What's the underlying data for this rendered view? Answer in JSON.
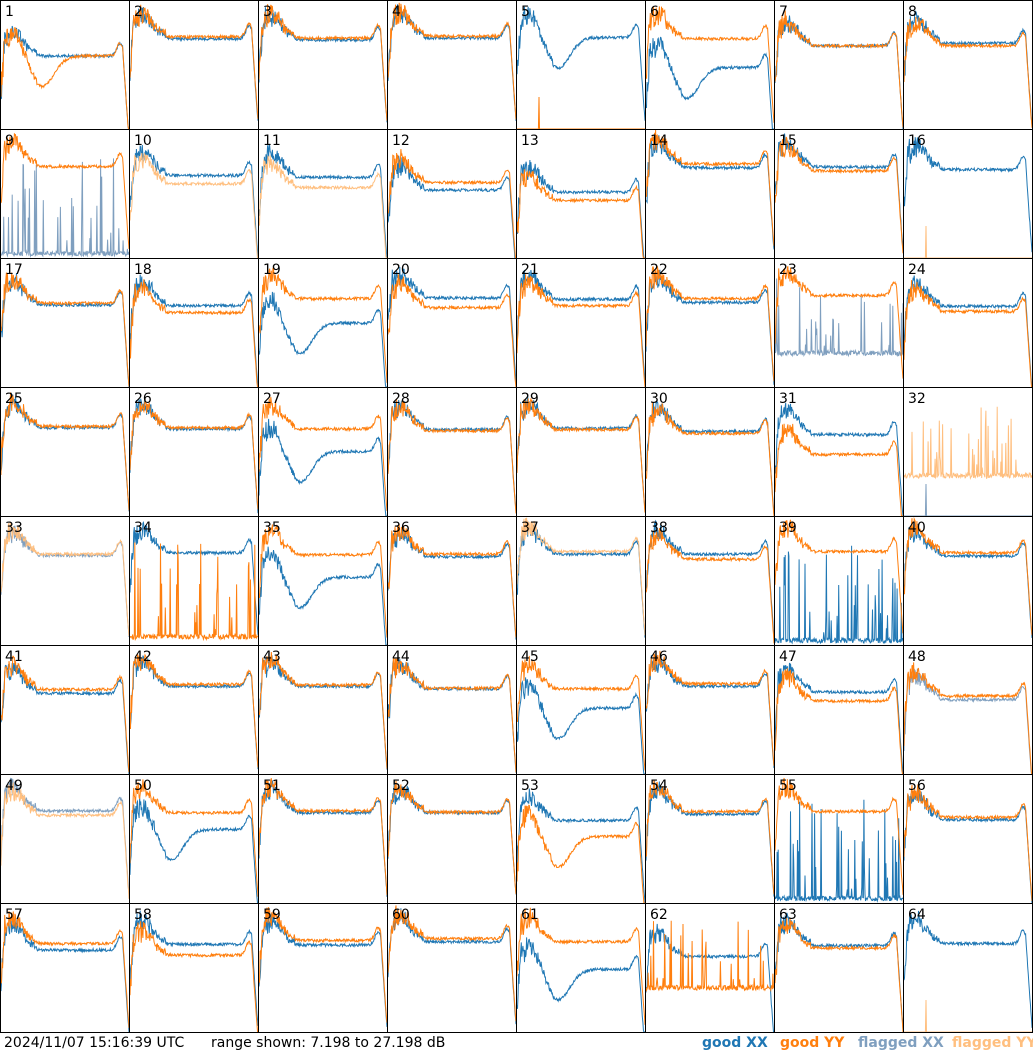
{
  "footer": {
    "timestamp": "2024/11/07 15:16:39 UTC",
    "range_text": "range shown: 7.198 to 27.198 dB"
  },
  "legend": [
    {
      "key": "good_xx",
      "label": "good XX",
      "color": "#1f77b4"
    },
    {
      "key": "good_yy",
      "label": "good YY",
      "color": "#ff7f0e"
    },
    {
      "key": "flagged_xx",
      "label": "flagged XX",
      "color": "#7f9fbf"
    },
    {
      "key": "flagged_yy",
      "label": "flagged YY",
      "color": "#ffbf7f"
    }
  ],
  "chart_data": {
    "type": "line",
    "title": "",
    "xlabel": "",
    "ylabel": "",
    "ylim": [
      7.198,
      27.198
    ],
    "grid_rows": 8,
    "grid_cols": 8,
    "series_names": [
      "good XX",
      "good YY",
      "flagged XX",
      "flagged YY"
    ],
    "panels": [
      {
        "n": 1,
        "xx": {
          "lvl": 18.6,
          "st": "normal",
          "f": false
        },
        "yy": {
          "lvl": 18.6,
          "st": "dip",
          "f": false
        }
      },
      {
        "n": 2,
        "xx": {
          "lvl": 21.3,
          "st": "normal",
          "f": false
        },
        "yy": {
          "lvl": 21.6,
          "st": "normal",
          "f": false
        }
      },
      {
        "n": 3,
        "xx": {
          "lvl": 21.1,
          "st": "normal",
          "f": false
        },
        "yy": {
          "lvl": 21.4,
          "st": "normal",
          "f": false
        }
      },
      {
        "n": 4,
        "xx": {
          "lvl": 21.4,
          "st": "normal",
          "f": false
        },
        "yy": {
          "lvl": 21.7,
          "st": "normal",
          "f": false
        }
      },
      {
        "n": 5,
        "xx": {
          "lvl": 21.5,
          "st": "dip",
          "f": false
        },
        "yy": {
          "lvl": 7.2,
          "st": "dead",
          "f": false
        }
      },
      {
        "n": 6,
        "xx": {
          "lvl": 16.8,
          "st": "dip",
          "f": false
        },
        "yy": {
          "lvl": 21.3,
          "st": "normal",
          "f": false
        }
      },
      {
        "n": 7,
        "xx": {
          "lvl": 20.2,
          "st": "normal",
          "f": false
        },
        "yy": {
          "lvl": 20.2,
          "st": "normal",
          "f": false
        }
      },
      {
        "n": 8,
        "xx": {
          "lvl": 20.6,
          "st": "normal",
          "f": false
        },
        "yy": {
          "lvl": 20.2,
          "st": "normal",
          "f": false
        }
      },
      {
        "n": 9,
        "xx": {
          "lvl": 7.9,
          "st": "spiky",
          "f": true
        },
        "yy": {
          "lvl": 21.5,
          "st": "normal",
          "f": false
        }
      },
      {
        "n": 10,
        "xx": {
          "lvl": 20.1,
          "st": "normal",
          "f": false
        },
        "yy": {
          "lvl": 18.8,
          "st": "normal",
          "f": true
        }
      },
      {
        "n": 11,
        "xx": {
          "lvl": 19.8,
          "st": "normal",
          "f": false
        },
        "yy": {
          "lvl": 18.2,
          "st": "normal",
          "f": true
        }
      },
      {
        "n": 12,
        "xx": {
          "lvl": 17.8,
          "st": "normal",
          "f": false
        },
        "yy": {
          "lvl": 19.0,
          "st": "normal",
          "f": false
        }
      },
      {
        "n": 13,
        "xx": {
          "lvl": 17.5,
          "st": "normal",
          "f": false
        },
        "yy": {
          "lvl": 16.2,
          "st": "normal",
          "f": false
        }
      },
      {
        "n": 14,
        "xx": {
          "lvl": 21.3,
          "st": "normal",
          "f": false
        },
        "yy": {
          "lvl": 21.9,
          "st": "normal",
          "f": false
        }
      },
      {
        "n": 15,
        "xx": {
          "lvl": 21.4,
          "st": "normal",
          "f": false
        },
        "yy": {
          "lvl": 20.8,
          "st": "normal",
          "f": false
        }
      },
      {
        "n": 16,
        "xx": {
          "lvl": 21.0,
          "st": "normal",
          "f": false
        },
        "yy": {
          "lvl": 7.2,
          "st": "dead",
          "f": true
        }
      },
      {
        "n": 17,
        "xx": {
          "lvl": 20.0,
          "st": "normal",
          "f": false
        },
        "yy": {
          "lvl": 20.3,
          "st": "normal",
          "f": false
        }
      },
      {
        "n": 18,
        "xx": {
          "lvl": 19.9,
          "st": "normal",
          "f": false
        },
        "yy": {
          "lvl": 18.8,
          "st": "normal",
          "f": false
        }
      },
      {
        "n": 19,
        "xx": {
          "lvl": 17.2,
          "st": "dip",
          "f": false
        },
        "yy": {
          "lvl": 21.0,
          "st": "normal",
          "f": false
        }
      },
      {
        "n": 20,
        "xx": {
          "lvl": 21.1,
          "st": "normal",
          "f": false
        },
        "yy": {
          "lvl": 19.6,
          "st": "normal",
          "f": false
        }
      },
      {
        "n": 21,
        "xx": {
          "lvl": 20.9,
          "st": "normal",
          "f": false
        },
        "yy": {
          "lvl": 19.9,
          "st": "normal",
          "f": false
        }
      },
      {
        "n": 22,
        "xx": {
          "lvl": 20.4,
          "st": "normal",
          "f": false
        },
        "yy": {
          "lvl": 21.0,
          "st": "normal",
          "f": false
        }
      },
      {
        "n": 23,
        "xx": {
          "lvl": 12.5,
          "st": "spiky",
          "f": true
        },
        "yy": {
          "lvl": 21.5,
          "st": "normal",
          "f": false
        }
      },
      {
        "n": 24,
        "xx": {
          "lvl": 19.8,
          "st": "normal",
          "f": false
        },
        "yy": {
          "lvl": 19.0,
          "st": "normal",
          "f": false
        }
      },
      {
        "n": 25,
        "xx": {
          "lvl": 21.0,
          "st": "normal",
          "f": false
        },
        "yy": {
          "lvl": 21.2,
          "st": "normal",
          "f": false
        }
      },
      {
        "n": 26,
        "xx": {
          "lvl": 20.8,
          "st": "normal",
          "f": false
        },
        "yy": {
          "lvl": 21.0,
          "st": "normal",
          "f": false
        }
      },
      {
        "n": 27,
        "xx": {
          "lvl": 17.3,
          "st": "dip",
          "f": false
        },
        "yy": {
          "lvl": 20.8,
          "st": "normal",
          "f": false
        }
      },
      {
        "n": 28,
        "xx": {
          "lvl": 20.7,
          "st": "normal",
          "f": false
        },
        "yy": {
          "lvl": 20.5,
          "st": "normal",
          "f": false
        }
      },
      {
        "n": 29,
        "xx": {
          "lvl": 20.9,
          "st": "normal",
          "f": false
        },
        "yy": {
          "lvl": 20.7,
          "st": "normal",
          "f": false
        }
      },
      {
        "n": 30,
        "xx": {
          "lvl": 20.4,
          "st": "normal",
          "f": false
        },
        "yy": {
          "lvl": 20.1,
          "st": "normal",
          "f": false
        }
      },
      {
        "n": 31,
        "xx": {
          "lvl": 19.9,
          "st": "normal",
          "f": false
        },
        "yy": {
          "lvl": 16.8,
          "st": "normal",
          "f": false
        }
      },
      {
        "n": 32,
        "xx": {
          "lvl": 7.2,
          "st": "dead",
          "f": true
        },
        "yy": {
          "lvl": 13.5,
          "st": "spiky",
          "f": true
        }
      },
      {
        "n": 33,
        "xx": {
          "lvl": 21.2,
          "st": "normal",
          "f": true
        },
        "yy": {
          "lvl": 21.4,
          "st": "normal",
          "f": true
        }
      },
      {
        "n": 34,
        "xx": {
          "lvl": 21.6,
          "st": "normal",
          "f": false
        },
        "yy": {
          "lvl": 8.5,
          "st": "spiky",
          "f": false
        }
      },
      {
        "n": 35,
        "xx": {
          "lvl": 17.8,
          "st": "dip",
          "f": false
        },
        "yy": {
          "lvl": 21.3,
          "st": "normal",
          "f": false
        }
      },
      {
        "n": 36,
        "xx": {
          "lvl": 21.0,
          "st": "normal",
          "f": false
        },
        "yy": {
          "lvl": 21.4,
          "st": "normal",
          "f": false
        }
      },
      {
        "n": 37,
        "xx": {
          "lvl": 21.4,
          "st": "normal",
          "f": false
        },
        "yy": {
          "lvl": 21.8,
          "st": "normal",
          "f": true
        }
      },
      {
        "n": 38,
        "xx": {
          "lvl": 21.4,
          "st": "normal",
          "f": false
        },
        "yy": {
          "lvl": 20.6,
          "st": "normal",
          "f": false
        }
      },
      {
        "n": 39,
        "xx": {
          "lvl": 7.9,
          "st": "spiky",
          "f": false
        },
        "yy": {
          "lvl": 21.8,
          "st": "normal",
          "f": false
        }
      },
      {
        "n": 40,
        "xx": {
          "lvl": 21.1,
          "st": "normal",
          "f": false
        },
        "yy": {
          "lvl": 21.6,
          "st": "normal",
          "f": false
        }
      },
      {
        "n": 41,
        "xx": {
          "lvl": 19.8,
          "st": "normal",
          "f": false
        },
        "yy": {
          "lvl": 20.4,
          "st": "normal",
          "f": false
        }
      },
      {
        "n": 42,
        "xx": {
          "lvl": 20.9,
          "st": "normal",
          "f": false
        },
        "yy": {
          "lvl": 21.2,
          "st": "normal",
          "f": false
        }
      },
      {
        "n": 43,
        "xx": {
          "lvl": 20.9,
          "st": "normal",
          "f": false
        },
        "yy": {
          "lvl": 21.1,
          "st": "normal",
          "f": false
        }
      },
      {
        "n": 44,
        "xx": {
          "lvl": 20.5,
          "st": "normal",
          "f": false
        },
        "yy": {
          "lvl": 20.6,
          "st": "normal",
          "f": false
        }
      },
      {
        "n": 45,
        "xx": {
          "lvl": 17.5,
          "st": "dip",
          "f": false
        },
        "yy": {
          "lvl": 20.5,
          "st": "normal",
          "f": false
        }
      },
      {
        "n": 46,
        "xx": {
          "lvl": 20.9,
          "st": "normal",
          "f": false
        },
        "yy": {
          "lvl": 21.3,
          "st": "normal",
          "f": false
        }
      },
      {
        "n": 47,
        "xx": {
          "lvl": 20.0,
          "st": "normal",
          "f": false
        },
        "yy": {
          "lvl": 18.6,
          "st": "normal",
          "f": false
        }
      },
      {
        "n": 48,
        "xx": {
          "lvl": 18.8,
          "st": "normal",
          "f": true
        },
        "yy": {
          "lvl": 19.4,
          "st": "normal",
          "f": false
        }
      },
      {
        "n": 49,
        "xx": {
          "lvl": 21.6,
          "st": "normal",
          "f": true
        },
        "yy": {
          "lvl": 20.9,
          "st": "normal",
          "f": true
        }
      },
      {
        "n": 50,
        "xx": {
          "lvl": 18.7,
          "st": "dip",
          "f": false
        },
        "yy": {
          "lvl": 21.3,
          "st": "normal",
          "f": false
        }
      },
      {
        "n": 51,
        "xx": {
          "lvl": 21.3,
          "st": "normal",
          "f": false
        },
        "yy": {
          "lvl": 21.6,
          "st": "normal",
          "f": false
        }
      },
      {
        "n": 52,
        "xx": {
          "lvl": 21.3,
          "st": "normal",
          "f": false
        },
        "yy": {
          "lvl": 21.4,
          "st": "normal",
          "f": false
        }
      },
      {
        "n": 53,
        "xx": {
          "lvl": 20.1,
          "st": "normal",
          "f": false
        },
        "yy": {
          "lvl": 17.6,
          "st": "dip",
          "f": false
        }
      },
      {
        "n": 54,
        "xx": {
          "lvl": 21.1,
          "st": "normal",
          "f": false
        },
        "yy": {
          "lvl": 21.5,
          "st": "normal",
          "f": false
        }
      },
      {
        "n": 55,
        "xx": {
          "lvl": 7.9,
          "st": "spiky",
          "f": false
        },
        "yy": {
          "lvl": 21.5,
          "st": "normal",
          "f": false
        }
      },
      {
        "n": 56,
        "xx": {
          "lvl": 20.2,
          "st": "normal",
          "f": false
        },
        "yy": {
          "lvl": 20.6,
          "st": "normal",
          "f": false
        }
      },
      {
        "n": 57,
        "xx": {
          "lvl": 20.0,
          "st": "normal",
          "f": false
        },
        "yy": {
          "lvl": 21.0,
          "st": "normal",
          "f": false
        }
      },
      {
        "n": 58,
        "xx": {
          "lvl": 20.9,
          "st": "normal",
          "f": false
        },
        "yy": {
          "lvl": 19.2,
          "st": "normal",
          "f": false
        }
      },
      {
        "n": 59,
        "xx": {
          "lvl": 20.8,
          "st": "normal",
          "f": false
        },
        "yy": {
          "lvl": 21.5,
          "st": "normal",
          "f": false
        }
      },
      {
        "n": 60,
        "xx": {
          "lvl": 21.3,
          "st": "normal",
          "f": false
        },
        "yy": {
          "lvl": 21.8,
          "st": "normal",
          "f": false
        }
      },
      {
        "n": 61,
        "xx": {
          "lvl": 17.0,
          "st": "dip",
          "f": false
        },
        "yy": {
          "lvl": 21.3,
          "st": "normal",
          "f": false
        }
      },
      {
        "n": 62,
        "xx": {
          "lvl": 19.0,
          "st": "normal",
          "f": false
        },
        "yy": {
          "lvl": 14.1,
          "st": "spiky",
          "f": false
        }
      },
      {
        "n": 63,
        "xx": {
          "lvl": 20.7,
          "st": "normal",
          "f": false
        },
        "yy": {
          "lvl": 20.3,
          "st": "normal",
          "f": false
        }
      },
      {
        "n": 64,
        "xx": {
          "lvl": 21.0,
          "st": "normal",
          "f": false
        },
        "yy": {
          "lvl": 7.2,
          "st": "dead",
          "f": true
        }
      }
    ]
  }
}
